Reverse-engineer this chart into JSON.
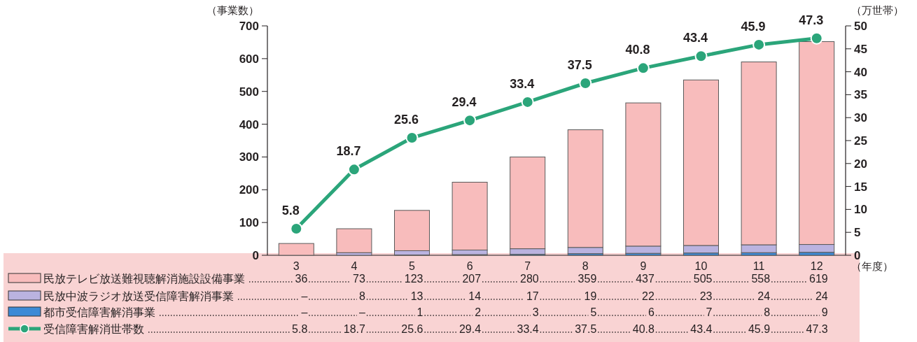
{
  "chart_data": {
    "type": "bar",
    "stacked": true,
    "ylabel": "（事業数）",
    "y2label": "（万世帯）",
    "xlabel": "（年度）",
    "categories": [
      "3",
      "4",
      "5",
      "6",
      "7",
      "8",
      "9",
      "10",
      "11",
      "12"
    ],
    "ylim": [
      0,
      700
    ],
    "yticks": [
      0,
      100,
      200,
      300,
      400,
      500,
      600,
      700
    ],
    "y2lim": [
      0,
      50
    ],
    "y2ticks": [
      0,
      5,
      10,
      15,
      20,
      25,
      30,
      35,
      40,
      45,
      50
    ],
    "grid": false,
    "legend": "bottom",
    "marker": "circle",
    "series": [
      {
        "name": "都市受信障害解消事業",
        "color": "#3d8ad6",
        "values": [
          null,
          null,
          1,
          2,
          3,
          5,
          6,
          7,
          8,
          9
        ],
        "value_labels": [
          "–",
          "–",
          "1",
          "2",
          "3",
          "5",
          "6",
          "7",
          "8",
          "9"
        ]
      },
      {
        "name": "民放中波ラジオ放送受信障害解消事業",
        "color": "#bab3e0",
        "values": [
          null,
          8,
          13,
          14,
          17,
          19,
          22,
          23,
          24,
          24
        ],
        "value_labels": [
          "–",
          "8",
          "13",
          "14",
          "17",
          "19",
          "22",
          "23",
          "24",
          "24"
        ]
      },
      {
        "name": "民放テレビ放送難視聴解消施設設備事業",
        "color": "#f8bcbc",
        "values": [
          36,
          73,
          123,
          207,
          280,
          359,
          437,
          505,
          558,
          619
        ],
        "value_labels": [
          "36",
          "73",
          "123",
          "207",
          "280",
          "359",
          "437",
          "505",
          "558",
          "619"
        ]
      },
      {
        "name": "受信障害解消世帯数",
        "type": "line",
        "axis": "y2",
        "color": "#2ba57a",
        "values": [
          5.8,
          18.7,
          25.6,
          29.4,
          33.4,
          37.5,
          40.8,
          43.4,
          45.9,
          47.3
        ],
        "value_labels": [
          "5.8",
          "18.7",
          "25.6",
          "29.4",
          "33.4",
          "37.5",
          "40.8",
          "43.4",
          "45.9",
          "47.3"
        ]
      }
    ]
  }
}
